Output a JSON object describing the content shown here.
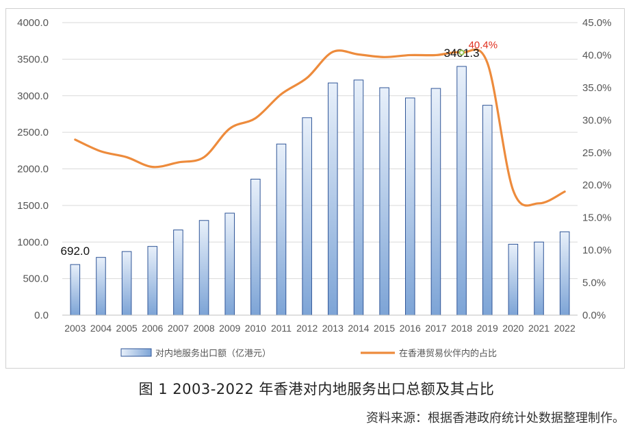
{
  "caption": "图 1   2003-2022 年香港对内地服务出口总额及其占比",
  "source": "资料来源：根据香港政府统计处数据整理制作。",
  "chart_data": {
    "type": "bar",
    "categories": [
      "2003",
      "2004",
      "2005",
      "2006",
      "2007",
      "2008",
      "2009",
      "2010",
      "2011",
      "2012",
      "2013",
      "2014",
      "2015",
      "2016",
      "2017",
      "2018",
      "2019",
      "2020",
      "2021",
      "2022"
    ],
    "series": [
      {
        "name": "对内地服务出口额（亿港元）",
        "type": "bar",
        "axis": "left",
        "values": [
          692.0,
          790,
          870,
          940,
          1165,
          1295,
          1395,
          1860,
          2340,
          2700,
          3175,
          3215,
          3110,
          2970,
          3100,
          3401.3,
          2870,
          970,
          1000,
          1140
        ]
      },
      {
        "name": "在香港贸易伙伴内的占比",
        "type": "line",
        "axis": "right",
        "values": [
          27.0,
          25.2,
          24.3,
          22.8,
          23.5,
          24.3,
          28.7,
          30.3,
          34.0,
          36.5,
          40.5,
          40.1,
          39.7,
          40.0,
          40.0,
          40.4,
          38.8,
          19.2,
          17.2,
          19.0
        ]
      }
    ],
    "data_labels": [
      {
        "series": 0,
        "index": 0,
        "text": "692.0"
      },
      {
        "series": 0,
        "index": 15,
        "text": "3401.3"
      },
      {
        "series": 1,
        "index": 15,
        "text": "40.4%"
      }
    ],
    "y_left": {
      "min": 0,
      "max": 4000,
      "ticks": [
        "0.0",
        "500.0",
        "1000.0",
        "1500.0",
        "2000.0",
        "2500.0",
        "3000.0",
        "3500.0",
        "4000.0"
      ]
    },
    "y_right": {
      "min": 0,
      "max": 45,
      "ticks": [
        "0.0%",
        "5.0%",
        "10.0%",
        "15.0%",
        "20.0%",
        "25.0%",
        "30.0%",
        "35.0%",
        "40.0%",
        "45.0%"
      ]
    },
    "grid": "horizontal",
    "legend_position": "bottom",
    "colors": {
      "bar_top": "#e8f0fa",
      "bar_bottom": "#7da4d6",
      "bar_edge": "#2f5597",
      "line": "#ed8b3c",
      "grid": "#d9d9d9",
      "label_highlight": "#e03020",
      "marker": "#92c050"
    }
  }
}
